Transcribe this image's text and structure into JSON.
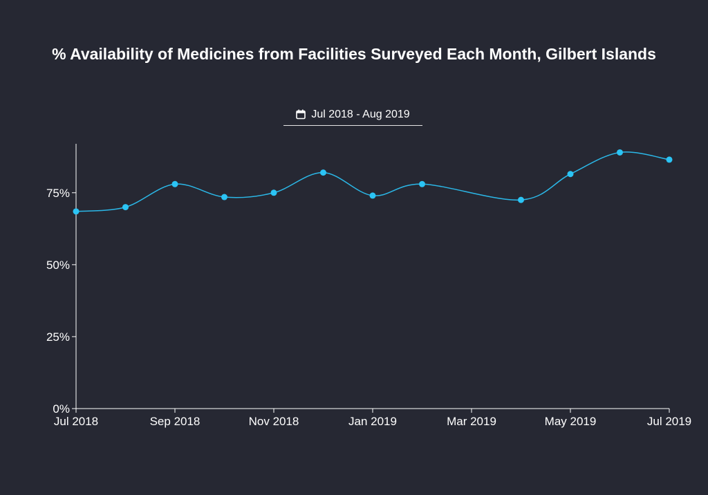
{
  "date_range": {
    "label": "Jul 2018 - Aug 2019",
    "icon": "calendar-icon"
  },
  "colors": {
    "background": "#262833",
    "line": "#2bb8e8",
    "point": "#2bc4f5",
    "axis": "#ffffff"
  },
  "chart_data": {
    "type": "line",
    "title": "% Availability of Medicines from Facilities Surveyed Each Month, Gilbert Islands",
    "xlabel": "",
    "ylabel": "",
    "x": [
      "2018-07",
      "2018-08",
      "2018-09",
      "2018-10",
      "2018-11",
      "2018-12",
      "2019-01",
      "2019-02",
      "2019-03",
      "2019-04",
      "2019-05",
      "2019-06",
      "2019-07"
    ],
    "series": [
      {
        "values": [
          68.5,
          70.0,
          78.0,
          73.5,
          75.0,
          82.0,
          74.0,
          78.0,
          null,
          72.5,
          81.5,
          89.0,
          86.5
        ]
      }
    ],
    "x_tick_labels": [
      "Jul 2018",
      "Sep 2018",
      "Nov 2018",
      "Jan 2019",
      "Mar 2019",
      "May 2019",
      "Jul 2019"
    ],
    "y_tick_labels": [
      "0%",
      "25%",
      "50%",
      "75%"
    ],
    "y_ticks": [
      0,
      25,
      50,
      75
    ],
    "ylim": [
      0,
      92
    ],
    "curve": "smooth",
    "grid": false,
    "legend": "none"
  }
}
